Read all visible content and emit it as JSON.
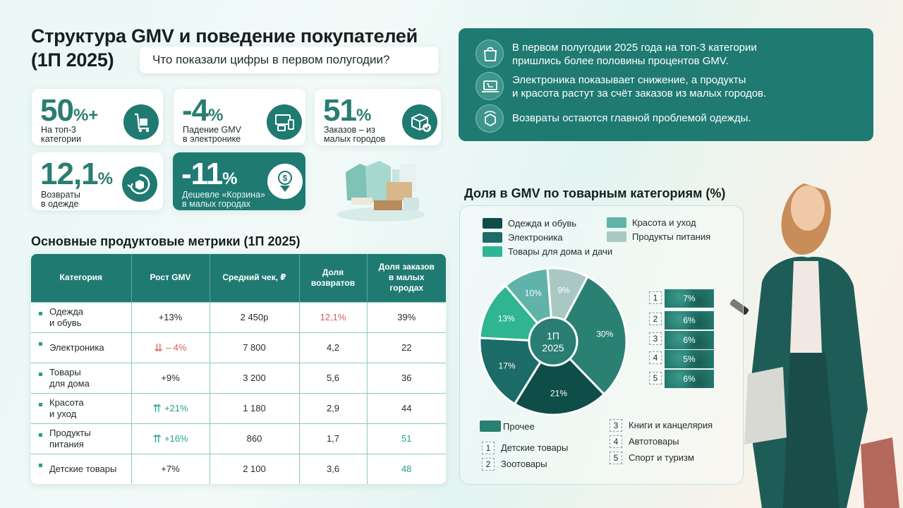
{
  "header": {
    "title_line1": "Структура GMV и поведение покупателей",
    "title_line2": "(1П 2025)",
    "question": "Что показали цифры в первом полугодии?"
  },
  "kpis": [
    {
      "value": "50",
      "suffix": "%+",
      "label": "На топ-3\nкатегории",
      "icon": "delivery-trolley-icon"
    },
    {
      "value": "-4",
      "suffix": "%",
      "label": "Падение GMV\nв электронике",
      "icon": "devices-icon"
    },
    {
      "value": "51",
      "suffix": "%",
      "label": "Заказов – из\nмалых городов",
      "icon": "package-check-icon"
    },
    {
      "value": "12,1",
      "suffix": "%",
      "label": "Возвраты\nв одежде",
      "icon": "return-box-icon"
    },
    {
      "value": "-11",
      "suffix": "%",
      "label": "Дешевле «Корзина»\nв малых городах",
      "icon": "price-down-icon"
    }
  ],
  "table": {
    "title": "Основные продуктовые метрики (1П 2025)",
    "headers": [
      "Категория",
      "Рост GMV",
      "Средний чек, ₽",
      "Доля\nвозвратов",
      "Доля заказов\nв малых\nгородах"
    ],
    "rows": [
      {
        "category": "Одежда\nи обувь",
        "growth": "+13%",
        "check": "2 450р",
        "returns": "12,1%",
        "small": "39%",
        "growth_dir": "none",
        "returns_hl": "neg",
        "small_hl": "none"
      },
      {
        "category": "Электроника",
        "growth": "– 4%",
        "check": "7 800",
        "returns": "4,2",
        "small": "22",
        "growth_dir": "down",
        "returns_hl": "none",
        "small_hl": "none"
      },
      {
        "category": "Товары\nдля дома",
        "growth": "+9%",
        "check": "3 200",
        "returns": "5,6",
        "small": "36",
        "growth_dir": "none",
        "returns_hl": "none",
        "small_hl": "none"
      },
      {
        "category": "Красота\nи уход",
        "growth": "+21%",
        "check": "1 180",
        "returns": "2,9",
        "small": "44",
        "growth_dir": "up",
        "returns_hl": "none",
        "small_hl": "none"
      },
      {
        "category": "Продукты\nпитания",
        "growth": "+16%",
        "check": "860",
        "returns": "1,7",
        "small": "51",
        "growth_dir": "up",
        "returns_hl": "none",
        "small_hl": "pos"
      },
      {
        "category": "Детские товары",
        "growth": "+7%",
        "check": "2 100",
        "returns": "3,6",
        "small": "48",
        "growth_dir": "none",
        "returns_hl": "none",
        "small_hl": "pos"
      }
    ]
  },
  "insights": [
    {
      "icon": "shopping-bag-icon",
      "text": "В первом полугодии 2025 года на топ-3 категории\nпришлись более половины процентов GMV."
    },
    {
      "icon": "laptop-cart-icon",
      "text": "Электроника показывает снижение, а продукты\nи красота растут за счёт заказов из малых городов."
    },
    {
      "icon": "return-arrow-box-icon",
      "text": "Возвраты остаются главной проблемой одежды."
    }
  ],
  "pie": {
    "title": "Доля в GMV по товарным категориям (%)",
    "center_line1": "1П",
    "center_line2": "2025",
    "legend": [
      {
        "label": "Одежда и обувь",
        "color": "#0e4d48"
      },
      {
        "label": "Электроника",
        "color": "#1b6b68"
      },
      {
        "label": "Товары для дома и дачи",
        "color": "#2fb592"
      },
      {
        "label": "Красота и уход",
        "color": "#5fb3a8"
      },
      {
        "label": "Продукты питания",
        "color": "#a9c8c4"
      }
    ],
    "other_label": "Прочее",
    "minor": [
      {
        "num": "1",
        "value": "7%",
        "label": "Детские товары"
      },
      {
        "num": "2",
        "value": "6%",
        "label": "Зоотовары"
      },
      {
        "num": "3",
        "value": "6%",
        "label": "Книги и канцелярия"
      },
      {
        "num": "4",
        "value": "5%",
        "label": "Автотовары"
      },
      {
        "num": "5",
        "value": "6%",
        "label": "Спорт и туризм"
      }
    ]
  },
  "chart_data": {
    "type": "pie",
    "title": "Доля в GMV по товарным категориям (%)",
    "categories": [
      "Прочее",
      "Одежда и обувь",
      "Электроника",
      "Товары для дома и дачи",
      "Красота и уход",
      "Продукты питания"
    ],
    "values": [
      30,
      21,
      17,
      13,
      10,
      9
    ],
    "labels": [
      "30%",
      "21%",
      "17%",
      "13%",
      "10%",
      "9%"
    ],
    "colors": [
      "#2a8073",
      "#0e4d48",
      "#1b6b68",
      "#2fb592",
      "#5fb3a8",
      "#a9c8c4"
    ],
    "legend_position": "top"
  },
  "colors": {
    "accent": "#1f7a72",
    "negative": "#d55b5b",
    "positive": "#23a08f"
  }
}
